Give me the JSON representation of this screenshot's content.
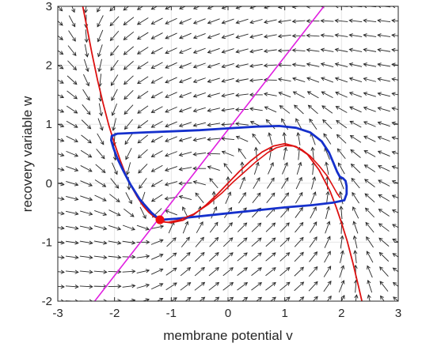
{
  "chart_data": {
    "type": "phase_portrait",
    "title": "",
    "xlabel": "membrane potential  v",
    "ylabel": "recovery variable  w",
    "xlim": [
      -3,
      3
    ],
    "ylim": [
      -2,
      3
    ],
    "xticks": [
      -3,
      -2,
      -1,
      0,
      1,
      2,
      3
    ],
    "yticks": [
      -2,
      -1,
      0,
      1,
      2,
      3
    ],
    "xtick_labels": [
      "-3",
      "-2",
      "-1",
      "0",
      "1",
      "2",
      "3"
    ],
    "ytick_labels": [
      "-2",
      "-1",
      "0",
      "1",
      "2",
      "3"
    ],
    "grid": true,
    "legend": "none",
    "vector_field": {
      "color": "#262626",
      "v_values": [
        -3,
        -2.75,
        -2.5,
        -2.25,
        -2,
        -1.75,
        -1.5,
        -1.25,
        -1,
        -0.75,
        -0.5,
        -0.25,
        0,
        0.25,
        0.5,
        0.75,
        1,
        1.25,
        1.5,
        1.75,
        2,
        2.25,
        2.5,
        2.75,
        3
      ],
      "w_values": [
        -2,
        -1.75,
        -1.5,
        -1.25,
        -1,
        -0.75,
        -0.5,
        -0.25,
        0,
        0.25,
        0.5,
        0.75,
        1,
        1.25,
        1.5,
        1.75,
        2,
        2.25,
        2.5,
        2.75,
        3
      ]
    },
    "series": [
      {
        "kind": "v-nullcline (cubic)",
        "color": "#dd1111",
        "points": [
          [
            -2.56,
            3.0
          ],
          [
            -2.5,
            2.71
          ],
          [
            -2.4,
            2.21
          ],
          [
            -2.3,
            1.75
          ],
          [
            -2.2,
            1.35
          ],
          [
            -2.1,
            0.98
          ],
          [
            -2.0,
            0.67
          ],
          [
            -1.9,
            0.39
          ],
          [
            -1.8,
            0.14
          ],
          [
            -1.7,
            -0.06
          ],
          [
            -1.6,
            -0.23
          ],
          [
            -1.5,
            -0.38
          ],
          [
            -1.4,
            -0.49
          ],
          [
            -1.3,
            -0.57
          ],
          [
            -1.2,
            -0.62
          ],
          [
            -1.1,
            -0.66
          ],
          [
            -1.0,
            -0.67
          ],
          [
            -0.8,
            -0.63
          ],
          [
            -0.6,
            -0.53
          ],
          [
            -0.4,
            -0.38
          ],
          [
            -0.2,
            -0.2
          ],
          [
            0.0,
            0.0
          ],
          [
            0.2,
            0.2
          ],
          [
            0.4,
            0.38
          ],
          [
            0.6,
            0.53
          ],
          [
            0.8,
            0.63
          ],
          [
            1.0,
            0.67
          ],
          [
            1.2,
            0.62
          ],
          [
            1.4,
            0.49
          ],
          [
            1.6,
            0.23
          ],
          [
            1.8,
            -0.14
          ],
          [
            1.9,
            -0.39
          ],
          [
            2.0,
            -0.67
          ],
          [
            2.1,
            -0.98
          ],
          [
            2.2,
            -1.35
          ],
          [
            2.3,
            -1.75
          ],
          [
            2.36,
            -2.0
          ]
        ]
      },
      {
        "kind": "w-nullcline (line)",
        "color": "#e020e0",
        "points": [
          [
            -2.35,
            -2.0
          ],
          [
            1.69,
            3.0
          ]
        ]
      },
      {
        "kind": "limit cycle trajectory",
        "color": "#1530cc",
        "points": [
          [
            -1.2,
            -0.62
          ],
          [
            -1.35,
            -0.5
          ],
          [
            -1.55,
            -0.28
          ],
          [
            -1.72,
            -0.02
          ],
          [
            -1.85,
            0.22
          ],
          [
            -1.95,
            0.42
          ],
          [
            -2.02,
            0.6
          ],
          [
            -2.06,
            0.73
          ],
          [
            -2.05,
            0.8
          ],
          [
            -1.95,
            0.84
          ],
          [
            -1.5,
            0.86
          ],
          [
            -1.0,
            0.88
          ],
          [
            -0.5,
            0.9
          ],
          [
            0.0,
            0.93
          ],
          [
            0.5,
            0.96
          ],
          [
            0.9,
            0.97
          ],
          [
            1.2,
            0.94
          ],
          [
            1.45,
            0.86
          ],
          [
            1.65,
            0.71
          ],
          [
            1.78,
            0.52
          ],
          [
            1.86,
            0.34
          ],
          [
            1.92,
            0.2
          ],
          [
            1.97,
            0.11
          ],
          [
            2.03,
            0.08
          ],
          [
            2.07,
            0.04
          ],
          [
            2.09,
            -0.05
          ],
          [
            2.09,
            -0.18
          ],
          [
            2.05,
            -0.29
          ],
          [
            1.85,
            -0.33
          ],
          [
            1.5,
            -0.37
          ],
          [
            1.0,
            -0.41
          ],
          [
            0.5,
            -0.46
          ],
          [
            0.0,
            -0.51
          ],
          [
            -0.5,
            -0.56
          ],
          [
            -0.9,
            -0.6
          ],
          [
            -1.2,
            -0.62
          ]
        ]
      },
      {
        "kind": "trajectory from fixed point",
        "color": "#dd1111",
        "points": [
          [
            -1.2,
            -0.66
          ],
          [
            -1.05,
            -0.66
          ],
          [
            -0.85,
            -0.62
          ],
          [
            -0.6,
            -0.52
          ],
          [
            -0.35,
            -0.36
          ],
          [
            -0.1,
            -0.16
          ],
          [
            0.1,
            0.03
          ],
          [
            0.3,
            0.2
          ],
          [
            0.5,
            0.37
          ],
          [
            0.7,
            0.52
          ],
          [
            0.85,
            0.6
          ],
          [
            1.0,
            0.64
          ],
          [
            1.15,
            0.63
          ],
          [
            1.3,
            0.57
          ],
          [
            1.45,
            0.46
          ],
          [
            1.6,
            0.3
          ],
          [
            1.75,
            0.12
          ],
          [
            1.85,
            -0.05
          ],
          [
            1.92,
            -0.17
          ],
          [
            1.97,
            -0.24
          ]
        ]
      }
    ],
    "fixed_point": {
      "v": -1.2,
      "w": -0.62,
      "color": "#ee1111"
    }
  }
}
